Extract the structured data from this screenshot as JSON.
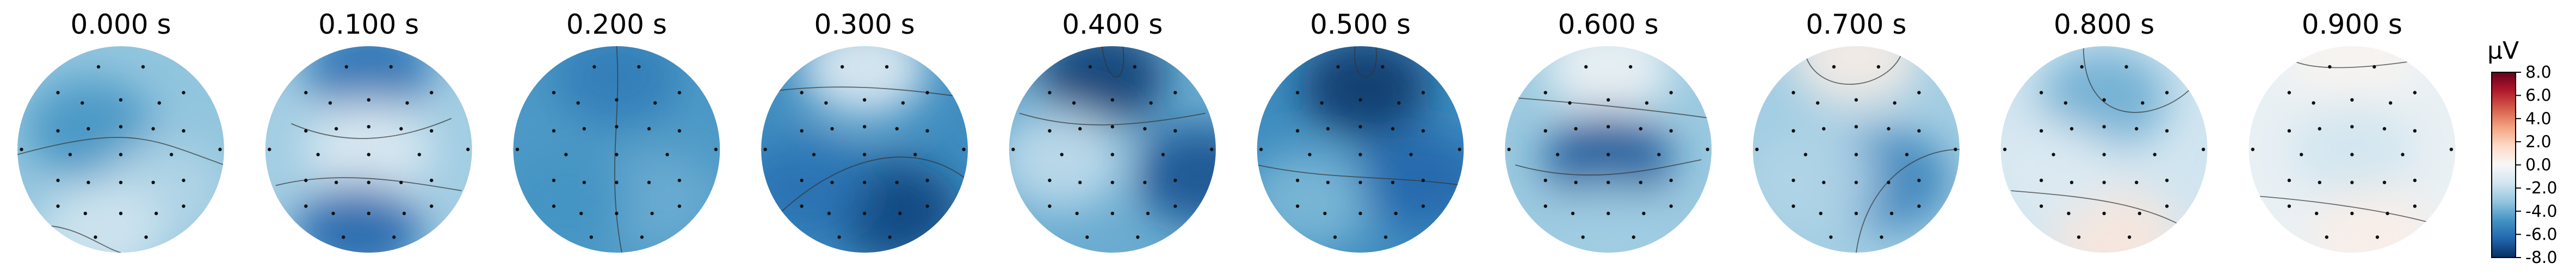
{
  "chart_data": {
    "type": "heatmap",
    "subtype": "eeg-topomap-time-series",
    "times": [
      "0.000 s",
      "0.100 s",
      "0.200 s",
      "0.300 s",
      "0.400 s",
      "0.500 s",
      "0.600 s",
      "0.700 s",
      "0.800 s",
      "0.900 s"
    ],
    "colorbar": {
      "unit": "µV",
      "vmin": -8.0,
      "vmax": 8.0,
      "ticks": [
        "8.0",
        "6.0",
        "4.0",
        "2.0",
        "0.0",
        "-2.0",
        "-4.0",
        "-6.0",
        "-8.0"
      ],
      "colormap": "RdBu_r",
      "colors": [
        "#053061",
        "#2166ac",
        "#4393c3",
        "#92c5de",
        "#d1e5f0",
        "#f7f7f7",
        "#fddbc7",
        "#f4a582",
        "#d6604d",
        "#b2182b",
        "#67001f"
      ]
    },
    "topomaps": [
      {
        "time": "0.000 s",
        "mean_uv": -3.2,
        "blobs": [
          {
            "u": -0.3,
            "v": -0.2,
            "value": -4.8
          },
          {
            "u": 0.4,
            "v": 0.4,
            "value": -2.4
          },
          {
            "u": -0.2,
            "v": 0.8,
            "value": -1.6
          }
        ]
      },
      {
        "time": "0.100 s",
        "mean_uv": -2.8,
        "blobs": [
          {
            "u": 0.0,
            "v": -0.8,
            "value": -6.0
          },
          {
            "u": 0.0,
            "v": 0.0,
            "value": -1.2
          },
          {
            "u": -0.1,
            "v": 0.8,
            "value": -6.4
          }
        ]
      },
      {
        "time": "0.200 s",
        "mean_uv": -4.6,
        "blobs": [
          {
            "u": 0.0,
            "v": -0.7,
            "value": -5.6
          },
          {
            "u": 0.4,
            "v": 0.5,
            "value": -4.0
          },
          {
            "u": -0.5,
            "v": 0.5,
            "value": -4.8
          }
        ]
      },
      {
        "time": "0.300 s",
        "mean_uv": -5.0,
        "blobs": [
          {
            "u": 0.0,
            "v": -0.8,
            "value": -0.8
          },
          {
            "u": 0.3,
            "v": 0.6,
            "value": -7.4
          },
          {
            "u": -0.6,
            "v": 0.4,
            "value": -6.0
          }
        ]
      },
      {
        "time": "0.400 s",
        "mean_uv": -4.0,
        "blobs": [
          {
            "u": -0.1,
            "v": -0.7,
            "value": -7.6
          },
          {
            "u": -0.5,
            "v": 0.1,
            "value": -2.0
          },
          {
            "u": 0.85,
            "v": 0.25,
            "value": -7.0
          }
        ]
      },
      {
        "time": "0.500 s",
        "mean_uv": -5.0,
        "blobs": [
          {
            "u": 0.05,
            "v": -0.6,
            "value": -7.8
          },
          {
            "u": -0.5,
            "v": 0.5,
            "value": -3.6
          },
          {
            "u": 0.6,
            "v": 0.3,
            "value": -6.4
          }
        ]
      },
      {
        "time": "0.600 s",
        "mean_uv": -3.0,
        "blobs": [
          {
            "u": 0.0,
            "v": -0.8,
            "value": -0.4
          },
          {
            "u": 0.0,
            "v": 0.1,
            "value": -6.8
          },
          {
            "u": 0.0,
            "v": 0.8,
            "value": -2.8
          }
        ]
      },
      {
        "time": "0.700 s",
        "mean_uv": -2.8,
        "blobs": [
          {
            "u": 0.0,
            "v": -0.9,
            "value": 0.6
          },
          {
            "u": 0.3,
            "v": 0.3,
            "value": -5.4
          },
          {
            "u": -0.4,
            "v": 0.3,
            "value": -2.4
          }
        ]
      },
      {
        "time": "0.800 s",
        "mean_uv": -1.6,
        "blobs": [
          {
            "u": 0.0,
            "v": -0.5,
            "value": -4.0
          },
          {
            "u": 0.1,
            "v": 0.85,
            "value": 0.9
          },
          {
            "u": -0.5,
            "v": 0.2,
            "value": -1.2
          }
        ]
      },
      {
        "time": "0.900 s",
        "mean_uv": -0.6,
        "blobs": [
          {
            "u": 0.0,
            "v": -0.9,
            "value": 0.2
          },
          {
            "u": 0.0,
            "v": 0.0,
            "value": -1.6
          },
          {
            "u": 0.2,
            "v": 0.85,
            "value": 0.5
          }
        ]
      }
    ]
  }
}
